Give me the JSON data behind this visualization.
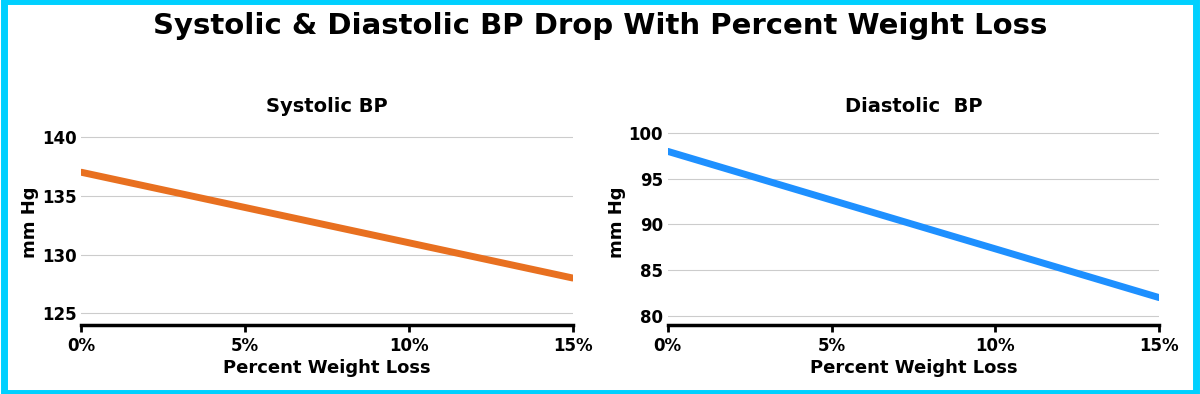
{
  "title": "Systolic & Diastolic BP Drop With Percent Weight Loss",
  "title_fontsize": 21,
  "title_fontweight": "bold",
  "background_color": "#ffffff",
  "border_color": "#00d0ff",
  "border_linewidth": 4,
  "left_subplot": {
    "title": "Systolic BP",
    "xlabel": "Percent Weight Loss",
    "ylabel": "mm Hg",
    "x": [
      0,
      15
    ],
    "y": [
      137.0,
      128.0
    ],
    "line_color": "#e87020",
    "line_width": 5,
    "ylim": [
      124,
      141.5
    ],
    "yticks": [
      125,
      130,
      135,
      140
    ],
    "xticks": [
      0,
      5,
      10,
      15
    ],
    "xticklabels": [
      "0%",
      "5%",
      "10%",
      "15%"
    ]
  },
  "right_subplot": {
    "title": "Diastolic  BP",
    "xlabel": "Percent Weight Loss",
    "ylabel": "mm Hg",
    "x": [
      0,
      15
    ],
    "y": [
      98.0,
      82.0
    ],
    "line_color": "#1e90ff",
    "line_width": 5,
    "ylim": [
      79,
      101.5
    ],
    "yticks": [
      80,
      85,
      90,
      95,
      100
    ],
    "xticks": [
      0,
      5,
      10,
      15
    ],
    "xticklabels": [
      "0%",
      "5%",
      "10%",
      "15%"
    ]
  }
}
